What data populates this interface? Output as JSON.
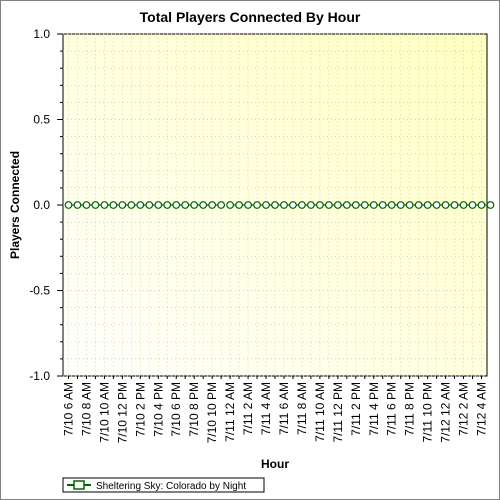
{
  "chart_data": {
    "type": "line",
    "title": "Total Players Connected By Hour",
    "xlabel": "Hour",
    "ylabel": "Players Connected",
    "ylim": [
      -1.0,
      1.0
    ],
    "yticks": [
      "1.0",
      "0.5",
      "0.0",
      "-0.5",
      "-1.0"
    ],
    "ytick_values": [
      1.0,
      0.5,
      0.0,
      -0.5,
      -1.0
    ],
    "x_tick_labels": [
      "7/10 6 AM",
      "7/10 8 AM",
      "7/10 10 AM",
      "7/10 12 PM",
      "7/10 2 PM",
      "7/10 4 PM",
      "7/10 6 PM",
      "7/10 8 PM",
      "7/10 10 PM",
      "7/11 12 AM",
      "7/11 2 AM",
      "7/11 4 AM",
      "7/11 6 AM",
      "7/11 8 AM",
      "7/11 10 AM",
      "7/11 12 PM",
      "7/11 2 PM",
      "7/11 4 PM",
      "7/11 6 PM",
      "7/11 8 PM",
      "7/11 10 PM",
      "7/12 12 AM",
      "7/12 2 AM",
      "7/12 4 AM"
    ],
    "series": [
      {
        "name": "Sheltering Sky: Colorado by Night",
        "color": "#006400",
        "values": [
          0,
          0,
          0,
          0,
          0,
          0,
          0,
          0,
          0,
          0,
          0,
          0,
          0,
          0,
          0,
          0,
          0,
          0,
          0,
          0,
          0,
          0,
          0,
          0,
          0,
          0,
          0,
          0,
          0,
          0,
          0,
          0,
          0,
          0,
          0,
          0,
          0,
          0,
          0,
          0,
          0,
          0,
          0,
          0,
          0,
          0,
          0,
          0
        ],
        "gap_after_index": 17
      }
    ],
    "grid": true,
    "legend": "bottom-left",
    "background_gradient": [
      "#ffffff",
      "#ffffc0"
    ]
  }
}
